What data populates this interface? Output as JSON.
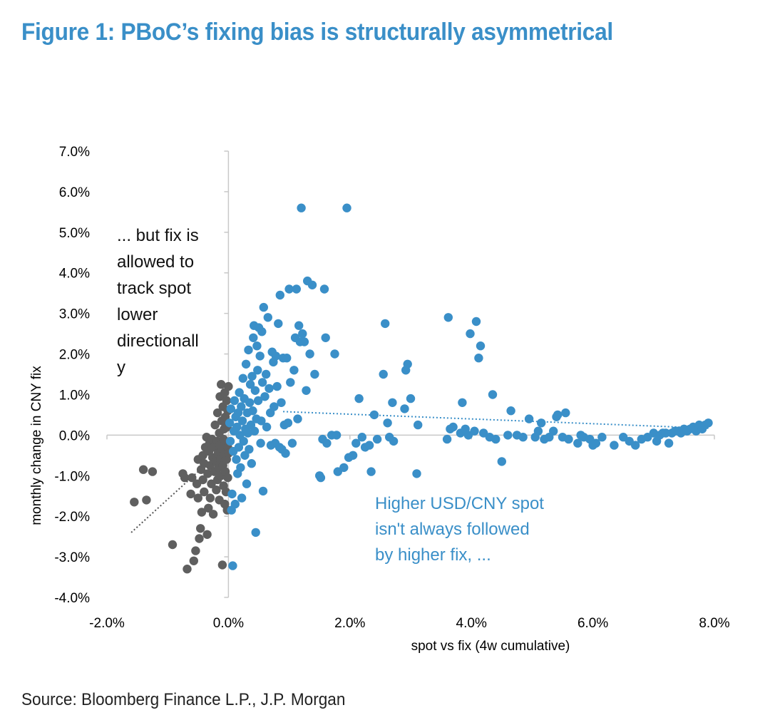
{
  "figure": {
    "title": "Figure 1: PBoC’s fixing bias is structurally asymmetrical",
    "source": "Source: Bloomberg Finance L.P., J.P. Morgan"
  },
  "chart_data": {
    "type": "scatter",
    "xlabel": "spot vs fix (4w cumulative)",
    "ylabel": "monthly change in CNY fix",
    "xlim": [
      -2.0,
      8.0
    ],
    "ylim": [
      -4.0,
      7.0
    ],
    "x_ticks": [
      -2.0,
      0.0,
      2.0,
      4.0,
      6.0,
      8.0
    ],
    "y_ticks": [
      -4.0,
      -3.0,
      -2.0,
      -1.0,
      0.0,
      1.0,
      2.0,
      3.0,
      4.0,
      5.0,
      6.0,
      7.0
    ],
    "x_tick_labels": [
      "-2.0%",
      "0.0%",
      "2.0%",
      "4.0%",
      "6.0%",
      "8.0%"
    ],
    "y_tick_labels": [
      "-4.0%",
      "-3.0%",
      "-2.0%",
      "-1.0%",
      "0.0%",
      "1.0%",
      "2.0%",
      "3.0%",
      "4.0%",
      "5.0%",
      "6.0%",
      "7.0%"
    ],
    "grid": false,
    "colors": {
      "negative": "#5f5f5f",
      "positive": "#3a8fc8"
    },
    "annotations": [
      {
        "id": "left-note",
        "lines": [
          "... but fix is",
          "allowed to",
          "track spot",
          "lower",
          "directionall",
          "y"
        ],
        "color": "#111111"
      },
      {
        "id": "right-note",
        "lines": [
          "Higher USD/CNY spot",
          "isn't always followed",
          "by higher fix, ..."
        ],
        "color": "#3a8fc8"
      }
    ],
    "series": [
      {
        "id": "negative",
        "color": "#5f5f5f",
        "trendline": {
          "x": [
            -1.6,
            -0.5
          ],
          "y": [
            -2.4,
            -0.9
          ]
        },
        "points": [
          [
            -1.55,
            -1.65
          ],
          [
            -1.4,
            -0.85
          ],
          [
            -1.35,
            -1.6
          ],
          [
            -1.25,
            -0.9
          ],
          [
            -0.92,
            -2.7
          ],
          [
            -0.75,
            -0.95
          ],
          [
            -0.72,
            -1.05
          ],
          [
            -0.68,
            -3.3
          ],
          [
            -0.62,
            -1.45
          ],
          [
            -0.6,
            -1.05
          ],
          [
            -0.57,
            -3.1
          ],
          [
            -0.54,
            -2.85
          ],
          [
            -0.52,
            -1.2
          ],
          [
            -0.5,
            -0.6
          ],
          [
            -0.5,
            -1.55
          ],
          [
            -0.48,
            -2.55
          ],
          [
            -0.46,
            -2.3
          ],
          [
            -0.45,
            -0.85
          ],
          [
            -0.44,
            -1.9
          ],
          [
            -0.42,
            -0.5
          ],
          [
            -0.42,
            -1.1
          ],
          [
            -0.4,
            -0.7
          ],
          [
            -0.4,
            -1.4
          ],
          [
            -0.38,
            -0.3
          ],
          [
            -0.36,
            -0.05
          ],
          [
            -0.35,
            -2.45
          ],
          [
            -0.34,
            -0.95
          ],
          [
            -0.33,
            -1.8
          ],
          [
            -0.32,
            -0.4
          ],
          [
            -0.31,
            -0.2
          ],
          [
            -0.3,
            -1.55
          ],
          [
            -0.3,
            -0.75
          ],
          [
            -0.28,
            -1.2
          ],
          [
            -0.27,
            -0.1
          ],
          [
            -0.26,
            -0.55
          ],
          [
            -0.25,
            -1.95
          ],
          [
            -0.24,
            -0.3
          ],
          [
            -0.23,
            -0.9
          ],
          [
            -0.22,
            0.25
          ],
          [
            -0.21,
            -0.65
          ],
          [
            -0.2,
            -1.35
          ],
          [
            -0.19,
            -0.15
          ],
          [
            -0.18,
            -1.1
          ],
          [
            -0.18,
            0.55
          ],
          [
            -0.17,
            -0.45
          ],
          [
            -0.16,
            -0.8
          ],
          [
            -0.15,
            0.05
          ],
          [
            -0.15,
            -1.6
          ],
          [
            -0.14,
            -0.25
          ],
          [
            -0.14,
            0.95
          ],
          [
            -0.13,
            -0.6
          ],
          [
            -0.12,
            1.25
          ],
          [
            -0.12,
            -1.0
          ],
          [
            -0.11,
            0.35
          ],
          [
            -0.1,
            -0.35
          ],
          [
            -0.1,
            -3.2
          ],
          [
            -0.09,
            0.7
          ],
          [
            -0.09,
            -0.75
          ],
          [
            -0.08,
            -0.1
          ],
          [
            -0.08,
            -1.25
          ],
          [
            -0.07,
            0.15
          ],
          [
            -0.07,
            -0.5
          ],
          [
            -0.06,
            1.05
          ],
          [
            -0.06,
            -1.7
          ],
          [
            -0.05,
            0.45
          ],
          [
            -0.05,
            -0.9
          ],
          [
            -0.04,
            -0.2
          ],
          [
            -0.04,
            -1.4
          ],
          [
            -0.03,
            0.85
          ],
          [
            -0.03,
            -0.6
          ],
          [
            -0.02,
            0.2
          ],
          [
            -0.02,
            -1.85
          ],
          [
            -0.01,
            -0.3
          ],
          [
            -0.01,
            0.6
          ],
          [
            -0.01,
            -1.05
          ],
          [
            0.0,
            -0.45
          ],
          [
            0.0,
            1.2
          ]
        ]
      },
      {
        "id": "positive",
        "color": "#3a8fc8",
        "trendline": {
          "x": [
            0.9,
            7.9
          ],
          "y": [
            0.58,
            0.17
          ]
        },
        "points": [
          [
            0.02,
            0.3
          ],
          [
            0.03,
            -0.15
          ],
          [
            0.04,
            0.65
          ],
          [
            0.05,
            -1.85
          ],
          [
            0.06,
            -1.45
          ],
          [
            0.07,
            -3.22
          ],
          [
            0.08,
            -0.4
          ],
          [
            0.09,
            0.1
          ],
          [
            0.1,
            0.85
          ],
          [
            0.11,
            -1.7
          ],
          [
            0.12,
            0.45
          ],
          [
            0.13,
            -0.6
          ],
          [
            0.14,
            0.2
          ],
          [
            0.15,
            -0.95
          ],
          [
            0.16,
            0.55
          ],
          [
            0.17,
            -0.3
          ],
          [
            0.18,
            1.05
          ],
          [
            0.19,
            0.0
          ],
          [
            0.2,
            -0.8
          ],
          [
            0.21,
            0.7
          ],
          [
            0.22,
            -1.55
          ],
          [
            0.23,
            0.35
          ],
          [
            0.24,
            1.4
          ],
          [
            0.25,
            -0.15
          ],
          [
            0.26,
            0.9
          ],
          [
            0.27,
            -0.5
          ],
          [
            0.28,
            0.15
          ],
          [
            0.29,
            1.75
          ],
          [
            0.3,
            -1.2
          ],
          [
            0.31,
            0.55
          ],
          [
            0.32,
            0.05
          ],
          [
            0.33,
            2.1
          ],
          [
            0.34,
            -0.35
          ],
          [
            0.35,
            0.8
          ],
          [
            0.36,
            1.25
          ],
          [
            0.37,
            0.25
          ],
          [
            0.38,
            -0.7
          ],
          [
            0.39,
            1.45
          ],
          [
            0.4,
            0.6
          ],
          [
            0.41,
            2.4
          ],
          [
            0.42,
            2.7
          ],
          [
            0.43,
            0.1
          ],
          [
            0.44,
            1.1
          ],
          [
            0.45,
            -2.4
          ],
          [
            0.46,
            0.4
          ],
          [
            0.47,
            2.2
          ],
          [
            0.48,
            1.6
          ],
          [
            0.49,
            0.85
          ],
          [
            0.5,
            2.65
          ],
          [
            0.52,
            1.95
          ],
          [
            0.53,
            -0.2
          ],
          [
            0.54,
            0.35
          ],
          [
            0.55,
            2.55
          ],
          [
            0.56,
            1.3
          ],
          [
            0.57,
            -1.38
          ],
          [
            0.58,
            3.15
          ],
          [
            0.6,
            0.95
          ],
          [
            0.62,
            1.5
          ],
          [
            0.63,
            0.2
          ],
          [
            0.65,
            2.9
          ],
          [
            0.67,
            1.15
          ],
          [
            0.69,
            0.55
          ],
          [
            0.7,
            -0.25
          ],
          [
            0.72,
            2.05
          ],
          [
            0.74,
            1.8
          ],
          [
            0.75,
            0.7
          ],
          [
            0.77,
            -0.2
          ],
          [
            0.78,
            1.95
          ],
          [
            0.8,
            1.2
          ],
          [
            0.82,
            2.75
          ],
          [
            0.84,
            -0.3
          ],
          [
            0.85,
            3.45
          ],
          [
            0.87,
            0.8
          ],
          [
            0.88,
            -0.35
          ],
          [
            0.9,
            1.9
          ],
          [
            0.92,
            0.25
          ],
          [
            0.94,
            -0.45
          ],
          [
            0.96,
            1.9
          ],
          [
            0.98,
            0.3
          ],
          [
            1.0,
            3.6
          ],
          [
            1.02,
            1.3
          ],
          [
            1.05,
            -0.2
          ],
          [
            1.08,
            1.6
          ],
          [
            1.1,
            2.4
          ],
          [
            1.12,
            3.6
          ],
          [
            1.14,
            0.4
          ],
          [
            1.16,
            2.7
          ],
          [
            1.18,
            2.3
          ],
          [
            1.2,
            5.6
          ],
          [
            1.22,
            2.5
          ],
          [
            1.25,
            2.3
          ],
          [
            1.28,
            1.1
          ],
          [
            1.3,
            3.8
          ],
          [
            1.34,
            2.0
          ],
          [
            1.38,
            3.7
          ],
          [
            1.42,
            1.5
          ],
          [
            1.5,
            -1.0
          ],
          [
            1.52,
            -1.05
          ],
          [
            1.55,
            -0.1
          ],
          [
            1.58,
            3.6
          ],
          [
            1.62,
            -0.2
          ],
          [
            1.6,
            2.4
          ],
          [
            1.7,
            0.0
          ],
          [
            1.75,
            2.0
          ],
          [
            1.78,
            0.0
          ],
          [
            1.8,
            -0.9
          ],
          [
            1.9,
            -0.8
          ],
          [
            1.95,
            5.6
          ],
          [
            1.98,
            -0.55
          ],
          [
            2.05,
            -0.5
          ],
          [
            2.1,
            -0.2
          ],
          [
            2.15,
            0.9
          ],
          [
            2.2,
            -0.05
          ],
          [
            2.25,
            -0.3
          ],
          [
            2.32,
            -0.25
          ],
          [
            2.35,
            -0.9
          ],
          [
            2.4,
            0.5
          ],
          [
            2.45,
            -0.1
          ],
          [
            2.55,
            1.5
          ],
          [
            2.58,
            2.75
          ],
          [
            2.62,
            0.3
          ],
          [
            2.65,
            -0.05
          ],
          [
            2.7,
            0.8
          ],
          [
            2.72,
            -0.15
          ],
          [
            2.9,
            0.65
          ],
          [
            2.92,
            1.6
          ],
          [
            2.95,
            1.75
          ],
          [
            3.0,
            0.9
          ],
          [
            3.1,
            -0.95
          ],
          [
            3.12,
            0.25
          ],
          [
            3.6,
            -0.1
          ],
          [
            3.62,
            2.9
          ],
          [
            3.65,
            0.15
          ],
          [
            3.7,
            0.2
          ],
          [
            3.82,
            0.05
          ],
          [
            3.85,
            0.8
          ],
          [
            3.9,
            0.15
          ],
          [
            3.95,
            0.0
          ],
          [
            3.98,
            2.5
          ],
          [
            4.05,
            0.1
          ],
          [
            4.08,
            2.8
          ],
          [
            4.12,
            1.9
          ],
          [
            4.15,
            2.2
          ],
          [
            4.2,
            0.05
          ],
          [
            4.3,
            -0.05
          ],
          [
            4.35,
            1.0
          ],
          [
            4.4,
            -0.1
          ],
          [
            4.5,
            -0.65
          ],
          [
            4.6,
            0.0
          ],
          [
            4.65,
            0.6
          ],
          [
            4.75,
            0.0
          ],
          [
            4.85,
            -0.05
          ],
          [
            4.95,
            0.4
          ],
          [
            5.05,
            -0.05
          ],
          [
            5.1,
            0.1
          ],
          [
            5.15,
            0.3
          ],
          [
            5.2,
            -0.1
          ],
          [
            5.28,
            -0.05
          ],
          [
            5.35,
            0.1
          ],
          [
            5.4,
            0.45
          ],
          [
            5.42,
            0.5
          ],
          [
            5.5,
            -0.05
          ],
          [
            5.55,
            0.55
          ],
          [
            5.6,
            -0.1
          ],
          [
            5.75,
            -0.2
          ],
          [
            5.8,
            0.0
          ],
          [
            5.85,
            -0.05
          ],
          [
            5.95,
            -0.1
          ],
          [
            6.0,
            -0.25
          ],
          [
            6.05,
            -0.2
          ],
          [
            6.15,
            -0.05
          ],
          [
            6.35,
            -0.25
          ],
          [
            6.5,
            -0.05
          ],
          [
            6.6,
            -0.15
          ],
          [
            6.7,
            -0.25
          ],
          [
            6.8,
            -0.1
          ],
          [
            6.9,
            -0.05
          ],
          [
            7.0,
            0.05
          ],
          [
            7.05,
            -0.15
          ],
          [
            7.1,
            0.0
          ],
          [
            7.15,
            0.05
          ],
          [
            7.2,
            0.05
          ],
          [
            7.25,
            -0.2
          ],
          [
            7.3,
            0.05
          ],
          [
            7.35,
            0.1
          ],
          [
            7.4,
            0.1
          ],
          [
            7.45,
            0.05
          ],
          [
            7.5,
            0.15
          ],
          [
            7.55,
            0.1
          ],
          [
            7.6,
            0.15
          ],
          [
            7.65,
            0.2
          ],
          [
            7.7,
            0.1
          ],
          [
            7.75,
            0.25
          ],
          [
            7.8,
            0.15
          ],
          [
            7.85,
            0.25
          ],
          [
            7.9,
            0.3
          ]
        ]
      }
    ]
  }
}
